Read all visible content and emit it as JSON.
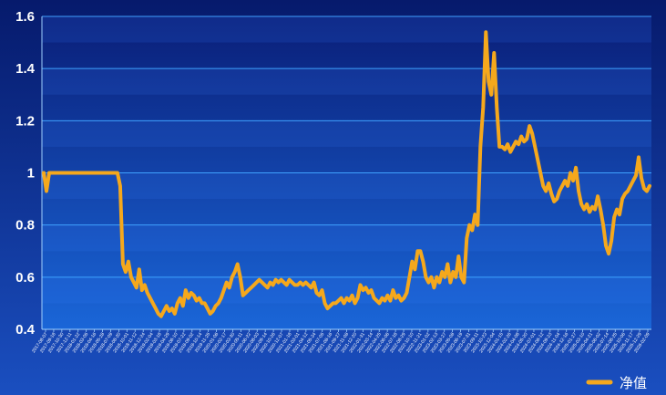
{
  "chart_data": {
    "type": "line",
    "title": "",
    "xlabel": "",
    "ylabel": "",
    "ylim": [
      0.4,
      1.6
    ],
    "yticks": [
      "0.4",
      "0.6",
      "0.8",
      "1",
      "1.2",
      "1.4",
      "1.6"
    ],
    "grid": true,
    "legend_position": "bottom-right",
    "x_tick_labels": [
      "2017-08-07",
      "2017-09-18",
      "2017-10-30",
      "2017-12-11",
      "2018-01-22",
      "2018-03-05",
      "2018-04-16",
      "2018-05-28",
      "2018-07-09",
      "2018-08-20",
      "2018-10-01",
      "2018-11-12",
      "2018-12-24",
      "2019-02-04",
      "2019-03-18",
      "2019-04-29",
      "2019-06-10",
      "2019-07-22",
      "2019-09-02",
      "2019-10-14",
      "2019-11-25",
      "2020-01-06",
      "2020-02-17",
      "2020-03-30",
      "2020-05-11",
      "2020-06-22",
      "2020-08-03",
      "2020-09-14",
      "2020-10-26",
      "2020-12-07",
      "2021-01-18",
      "2021-03-01",
      "2021-04-12",
      "2021-05-24",
      "2021-07-05",
      "2021-08-16",
      "2021-09-27",
      "2021-11-08",
      "2021-12-20",
      "2022-01-31",
      "2022-03-14",
      "2022-04-25",
      "2022-06-06",
      "2022-07-18",
      "2022-08-29",
      "2022-10-10",
      "2022-11-21",
      "2023-01-02",
      "2023-02-13",
      "2023-03-27",
      "2023-05-08",
      "2023-06-19",
      "2023-07-31",
      "2023-09-11",
      "2023-10-23",
      "2023-12-04",
      "2024-01-15",
      "2024-02-26",
      "2024-04-08",
      "2024-05-20",
      "2024-07-01",
      "2024-08-12",
      "2024-09-23",
      "2024-11-04",
      "2024-12-16",
      "2025-01-27",
      "2025-03-10",
      "2025-04-21",
      "2025-06-02",
      "2025-07-14",
      "2025-08-25",
      "2025-10-06",
      "2025-11-17",
      "2025-12-29",
      "2026-02-09"
    ],
    "series": [
      {
        "name": "净值",
        "color": "#f5a81c",
        "values": [
          1.0,
          0.93,
          1.0,
          1.0,
          1.0,
          1.0,
          1.0,
          1.0,
          1.0,
          1.0,
          1.0,
          1.0,
          1.0,
          1.0,
          1.0,
          1.0,
          1.0,
          1.0,
          1.0,
          1.0,
          1.0,
          1.0,
          1.0,
          1.0,
          1.0,
          1.0,
          1.0,
          1.0,
          0.95,
          0.65,
          0.62,
          0.66,
          0.6,
          0.58,
          0.56,
          0.63,
          0.55,
          0.57,
          0.54,
          0.52,
          0.5,
          0.48,
          0.46,
          0.45,
          0.47,
          0.49,
          0.47,
          0.48,
          0.46,
          0.5,
          0.52,
          0.49,
          0.55,
          0.52,
          0.54,
          0.53,
          0.51,
          0.52,
          0.5,
          0.5,
          0.48,
          0.46,
          0.47,
          0.49,
          0.5,
          0.52,
          0.55,
          0.58,
          0.56,
          0.6,
          0.62,
          0.65,
          0.6,
          0.53,
          0.54,
          0.55,
          0.56,
          0.57,
          0.58,
          0.59,
          0.58,
          0.57,
          0.56,
          0.58,
          0.57,
          0.59,
          0.58,
          0.59,
          0.58,
          0.57,
          0.59,
          0.58,
          0.57,
          0.57,
          0.58,
          0.57,
          0.58,
          0.57,
          0.56,
          0.58,
          0.54,
          0.53,
          0.55,
          0.5,
          0.48,
          0.49,
          0.5,
          0.5,
          0.51,
          0.52,
          0.5,
          0.52,
          0.51,
          0.53,
          0.5,
          0.52,
          0.57,
          0.55,
          0.56,
          0.54,
          0.55,
          0.52,
          0.51,
          0.5,
          0.52,
          0.51,
          0.53,
          0.51,
          0.55,
          0.52,
          0.53,
          0.51,
          0.52,
          0.54,
          0.6,
          0.66,
          0.63,
          0.7,
          0.7,
          0.66,
          0.6,
          0.58,
          0.6,
          0.56,
          0.6,
          0.58,
          0.62,
          0.6,
          0.65,
          0.58,
          0.62,
          0.6,
          0.68,
          0.6,
          0.58,
          0.75,
          0.8,
          0.78,
          0.84,
          0.8,
          1.1,
          1.25,
          1.54,
          1.35,
          1.3,
          1.46,
          1.25,
          1.1,
          1.1,
          1.09,
          1.11,
          1.08,
          1.1,
          1.12,
          1.11,
          1.14,
          1.12,
          1.13,
          1.18,
          1.15,
          1.1,
          1.05,
          1.0,
          0.95,
          0.93,
          0.96,
          0.92,
          0.89,
          0.9,
          0.93,
          0.95,
          0.97,
          0.95,
          1.0,
          0.97,
          1.02,
          0.93,
          0.88,
          0.86,
          0.88,
          0.85,
          0.87,
          0.86,
          0.91,
          0.86,
          0.8,
          0.72,
          0.69,
          0.74,
          0.83,
          0.86,
          0.84,
          0.9,
          0.92,
          0.93,
          0.95,
          0.97,
          0.99,
          1.06,
          0.98,
          0.94,
          0.93,
          0.95
        ]
      }
    ]
  }
}
